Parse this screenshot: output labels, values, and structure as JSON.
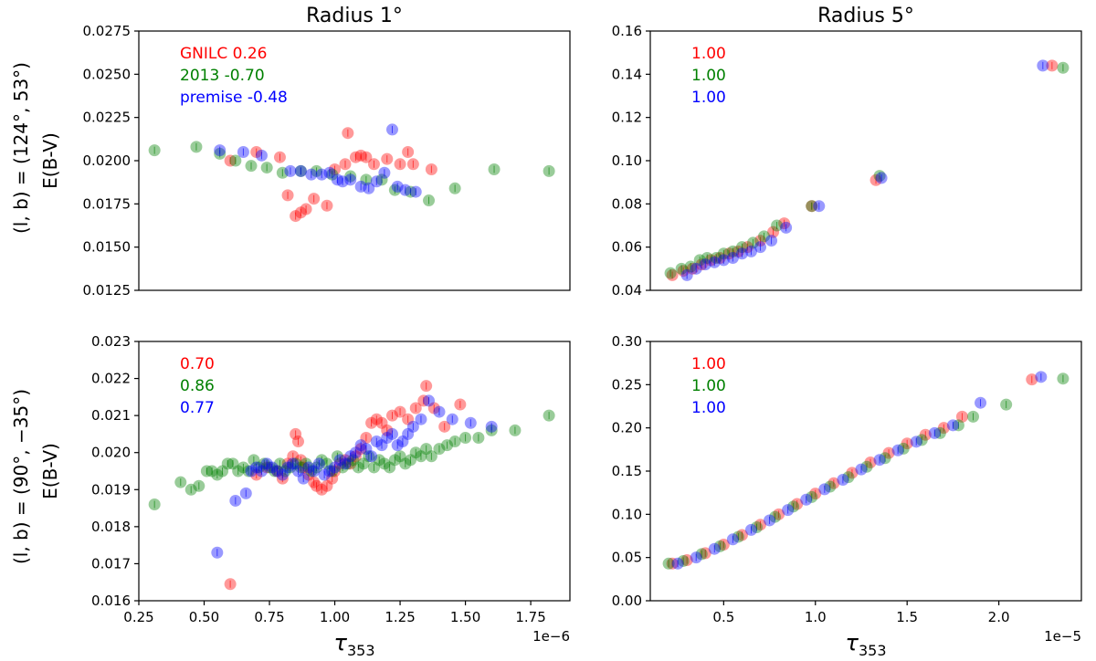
{
  "colors": {
    "GNILC": "#ff0000",
    "2013": "#008000",
    "premise": "#0000ff"
  },
  "row_labels": [
    "(l, b) = (124°, 53°)",
    "(l, b) = (90°, −35°)"
  ],
  "chart_data": [
    {
      "type": "scatter",
      "title": "Radius 1°",
      "ylabel": "E(B-V)",
      "xlabel": "",
      "xlim": [
        0.25,
        1.9
      ],
      "ylim": [
        0.0125,
        0.0275
      ],
      "xticks": [],
      "xtick_labels": [],
      "yticks": [
        0.0125,
        0.015,
        0.0175,
        0.02,
        0.0225,
        0.025,
        0.0275
      ],
      "ytick_labels": [
        "0.0125",
        "0.0150",
        "0.0175",
        "0.0200",
        "0.0225",
        "0.0250",
        "0.0275"
      ],
      "offset_text": "",
      "legend": [
        {
          "series": "GNILC",
          "text": "GNILC 0.26"
        },
        {
          "series": "2013",
          "text": "2013 -0.70"
        },
        {
          "series": "premise",
          "text": "premise -0.48"
        }
      ],
      "series": [
        {
          "name": "GNILC",
          "x": [
            0.6,
            0.7,
            0.79,
            0.82,
            0.85,
            0.87,
            0.89,
            0.92,
            0.97,
            1.0,
            1.04,
            1.05,
            1.08,
            1.1,
            1.12,
            1.15,
            1.2,
            1.25,
            1.28,
            1.3,
            1.37
          ],
          "y": [
            0.02,
            0.0205,
            0.0202,
            0.018,
            0.0168,
            0.017,
            0.0172,
            0.0178,
            0.0174,
            0.0195,
            0.0198,
            0.0216,
            0.0202,
            0.0203,
            0.0202,
            0.0198,
            0.0201,
            0.0198,
            0.0205,
            0.0198,
            0.0195
          ]
        },
        {
          "name": "2013",
          "x": [
            0.31,
            0.47,
            0.56,
            0.62,
            0.68,
            0.74,
            0.8,
            0.87,
            0.93,
            0.99,
            1.06,
            1.12,
            1.18,
            1.23,
            1.29,
            1.36,
            1.46,
            1.61,
            1.82
          ],
          "y": [
            0.0206,
            0.0208,
            0.0204,
            0.02,
            0.0197,
            0.0196,
            0.0193,
            0.0194,
            0.0194,
            0.0192,
            0.0191,
            0.0189,
            0.0189,
            0.0183,
            0.0182,
            0.0177,
            0.0184,
            0.0195,
            0.0194
          ]
        },
        {
          "name": "premise",
          "x": [
            0.56,
            0.65,
            0.72,
            0.83,
            0.87,
            0.91,
            0.95,
            0.98,
            1.01,
            1.03,
            1.06,
            1.1,
            1.13,
            1.16,
            1.19,
            1.22,
            1.24,
            1.27,
            1.31
          ],
          "y": [
            0.0206,
            0.0205,
            0.0203,
            0.0194,
            0.0194,
            0.0192,
            0.0192,
            0.0193,
            0.0189,
            0.0188,
            0.0189,
            0.0185,
            0.0184,
            0.0188,
            0.0193,
            0.0218,
            0.0185,
            0.0183,
            0.0182
          ]
        }
      ]
    },
    {
      "type": "scatter",
      "title": "Radius 5°",
      "ylabel": "",
      "xlabel": "",
      "xlim": [
        0.1,
        2.45
      ],
      "ylim": [
        0.04,
        0.16
      ],
      "xticks": [],
      "xtick_labels": [],
      "yticks": [
        0.04,
        0.06,
        0.08,
        0.1,
        0.12,
        0.14,
        0.16
      ],
      "ytick_labels": [
        "0.04",
        "0.06",
        "0.08",
        "0.10",
        "0.12",
        "0.14",
        "0.16"
      ],
      "offset_text": "",
      "legend": [
        {
          "series": "GNILC",
          "text": "1.00"
        },
        {
          "series": "2013",
          "text": "1.00"
        },
        {
          "series": "premise",
          "text": "1.00"
        }
      ],
      "series": [
        {
          "name": "GNILC",
          "x": [
            0.22,
            0.28,
            0.33,
            0.38,
            0.43,
            0.48,
            0.53,
            0.58,
            0.63,
            0.7,
            0.77,
            0.83,
            0.98,
            1.33,
            2.29
          ],
          "y": [
            0.047,
            0.049,
            0.05,
            0.052,
            0.054,
            0.055,
            0.057,
            0.058,
            0.06,
            0.063,
            0.067,
            0.071,
            0.079,
            0.091,
            0.144
          ]
        },
        {
          "name": "2013",
          "x": [
            0.21,
            0.27,
            0.32,
            0.37,
            0.41,
            0.46,
            0.5,
            0.55,
            0.6,
            0.66,
            0.72,
            0.79,
            0.98,
            1.35,
            2.35
          ],
          "y": [
            0.048,
            0.05,
            0.051,
            0.054,
            0.055,
            0.055,
            0.057,
            0.058,
            0.06,
            0.062,
            0.065,
            0.07,
            0.079,
            0.093,
            0.143
          ]
        },
        {
          "name": "premise",
          "x": [
            0.3,
            0.35,
            0.4,
            0.45,
            0.5,
            0.55,
            0.6,
            0.65,
            0.7,
            0.76,
            0.84,
            1.02,
            1.36,
            2.24
          ],
          "y": [
            0.047,
            0.05,
            0.052,
            0.053,
            0.054,
            0.055,
            0.057,
            0.058,
            0.06,
            0.063,
            0.069,
            0.079,
            0.092,
            0.144
          ]
        }
      ]
    },
    {
      "type": "scatter",
      "title": "",
      "ylabel": "E(B-V)",
      "xlabel": "τ353",
      "xlim": [
        0.25,
        1.9
      ],
      "ylim": [
        0.016,
        0.023
      ],
      "xticks": [
        0.25,
        0.5,
        0.75,
        1.0,
        1.25,
        1.5,
        1.75
      ],
      "xtick_labels": [
        "0.25",
        "0.50",
        "0.75",
        "1.00",
        "1.25",
        "1.50",
        "1.75"
      ],
      "yticks": [
        0.016,
        0.017,
        0.018,
        0.019,
        0.02,
        0.021,
        0.022,
        0.023
      ],
      "ytick_labels": [
        "0.016",
        "0.017",
        "0.018",
        "0.019",
        "0.020",
        "0.021",
        "0.022",
        "0.023"
      ],
      "offset_text": "1e−6",
      "legend": [
        {
          "series": "GNILC",
          "text": "0.70"
        },
        {
          "series": "2013",
          "text": "0.86"
        },
        {
          "series": "premise",
          "text": "0.77"
        }
      ],
      "series": [
        {
          "name": "GNILC",
          "x": [
            0.6,
            0.7,
            0.74,
            0.78,
            0.8,
            0.82,
            0.84,
            0.85,
            0.86,
            0.87,
            0.88,
            0.9,
            0.92,
            0.93,
            0.95,
            0.97,
            0.99,
            1.0,
            1.02,
            1.04,
            1.06,
            1.08,
            1.1,
            1.12,
            1.14,
            1.16,
            1.18,
            1.2,
            1.22,
            1.25,
            1.28,
            1.31,
            1.34,
            1.35,
            1.38,
            1.42,
            1.48
          ],
          "y": [
            0.01645,
            0.0194,
            0.0196,
            0.0195,
            0.0193,
            0.0197,
            0.0199,
            0.0205,
            0.0203,
            0.0198,
            0.0196,
            0.0194,
            0.0192,
            0.0191,
            0.019,
            0.0191,
            0.0193,
            0.0195,
            0.0197,
            0.0198,
            0.0197,
            0.0199,
            0.0201,
            0.0204,
            0.0208,
            0.0209,
            0.0208,
            0.0206,
            0.021,
            0.0211,
            0.0209,
            0.0212,
            0.0214,
            0.0218,
            0.0212,
            0.0207,
            0.0213
          ]
        },
        {
          "name": "2013",
          "x": [
            0.31,
            0.41,
            0.45,
            0.48,
            0.51,
            0.53,
            0.55,
            0.57,
            0.59,
            0.61,
            0.63,
            0.65,
            0.67,
            0.69,
            0.71,
            0.73,
            0.75,
            0.77,
            0.79,
            0.81,
            0.83,
            0.85,
            0.87,
            0.89,
            0.91,
            0.93,
            0.95,
            0.97,
            0.99,
            1.01,
            1.03,
            1.05,
            1.07,
            1.09,
            1.11,
            1.13,
            1.15,
            1.17,
            1.19,
            1.21,
            1.23,
            1.25,
            1.27,
            1.29,
            1.31,
            1.33,
            1.35,
            1.37,
            1.4,
            1.43,
            1.46,
            1.5,
            1.55,
            1.6,
            1.69,
            1.82
          ],
          "y": [
            0.0186,
            0.0192,
            0.019,
            0.0191,
            0.0195,
            0.0195,
            0.0194,
            0.0195,
            0.0197,
            0.0197,
            0.0195,
            0.0196,
            0.0195,
            0.0198,
            0.0196,
            0.0197,
            0.0196,
            0.0195,
            0.0197,
            0.0195,
            0.0196,
            0.0197,
            0.0196,
            0.0197,
            0.0195,
            0.0196,
            0.0198,
            0.0197,
            0.0195,
            0.0199,
            0.0196,
            0.0197,
            0.0198,
            0.0196,
            0.0197,
            0.0199,
            0.0196,
            0.0198,
            0.0197,
            0.0196,
            0.0198,
            0.0199,
            0.0197,
            0.0198,
            0.02,
            0.0199,
            0.0201,
            0.0199,
            0.0201,
            0.0202,
            0.0203,
            0.0204,
            0.0204,
            0.0206,
            0.0206,
            0.021
          ]
        },
        {
          "name": "premise",
          "x": [
            0.55,
            0.62,
            0.66,
            0.68,
            0.7,
            0.72,
            0.74,
            0.76,
            0.78,
            0.8,
            0.82,
            0.84,
            0.86,
            0.88,
            0.9,
            0.92,
            0.94,
            0.96,
            0.98,
            1.0,
            1.02,
            1.04,
            1.06,
            1.08,
            1.1,
            1.12,
            1.14,
            1.16,
            1.18,
            1.2,
            1.22,
            1.24,
            1.26,
            1.28,
            1.3,
            1.33,
            1.36,
            1.4,
            1.45,
            1.52,
            1.6
          ],
          "y": [
            0.0173,
            0.0187,
            0.0189,
            0.0195,
            0.0196,
            0.0195,
            0.0197,
            0.0196,
            0.0195,
            0.0194,
            0.0196,
            0.0197,
            0.0195,
            0.0193,
            0.0196,
            0.0195,
            0.0197,
            0.0194,
            0.0195,
            0.0196,
            0.0198,
            0.0197,
            0.0199,
            0.02,
            0.0202,
            0.0201,
            0.0199,
            0.0203,
            0.0202,
            0.0204,
            0.0205,
            0.0202,
            0.0203,
            0.0205,
            0.0207,
            0.0209,
            0.0214,
            0.0211,
            0.0209,
            0.0208,
            0.0207
          ]
        }
      ]
    },
    {
      "type": "scatter",
      "title": "",
      "ylabel": "",
      "xlabel": "τ353",
      "xlim": [
        0.1,
        2.45
      ],
      "ylim": [
        0.0,
        0.3
      ],
      "xticks": [
        0.5,
        1.0,
        1.5,
        2.0
      ],
      "xtick_labels": [
        "0.5",
        "1.0",
        "1.5",
        "2.0"
      ],
      "yticks": [
        0.0,
        0.05,
        0.1,
        0.15,
        0.2,
        0.25,
        0.3
      ],
      "ytick_labels": [
        "0.00",
        "0.05",
        "0.10",
        "0.15",
        "0.20",
        "0.25",
        "0.30"
      ],
      "offset_text": "1e−5",
      "legend": [
        {
          "series": "GNILC",
          "text": "1.00"
        },
        {
          "series": "2013",
          "text": "1.00"
        },
        {
          "series": "premise",
          "text": "1.00"
        }
      ],
      "series": [
        {
          "name": "GNILC",
          "x": [
            0.22,
            0.3,
            0.4,
            0.5,
            0.6,
            0.7,
            0.8,
            0.9,
            1.0,
            1.1,
            1.2,
            1.3,
            1.4,
            1.5,
            1.6,
            1.7,
            1.8,
            2.18
          ],
          "y": [
            0.043,
            0.047,
            0.055,
            0.065,
            0.076,
            0.088,
            0.1,
            0.112,
            0.124,
            0.136,
            0.148,
            0.16,
            0.171,
            0.182,
            0.192,
            0.2,
            0.213,
            0.256
          ]
        },
        {
          "name": "2013",
          "x": [
            0.2,
            0.28,
            0.38,
            0.48,
            0.58,
            0.68,
            0.78,
            0.88,
            0.98,
            1.08,
            1.18,
            1.28,
            1.38,
            1.48,
            1.58,
            1.68,
            1.78,
            1.86,
            2.04,
            2.35
          ],
          "y": [
            0.043,
            0.046,
            0.054,
            0.063,
            0.074,
            0.085,
            0.097,
            0.109,
            0.12,
            0.132,
            0.143,
            0.155,
            0.165,
            0.176,
            0.186,
            0.194,
            0.203,
            0.213,
            0.227,
            0.257
          ]
        },
        {
          "name": "premise",
          "x": [
            0.25,
            0.35,
            0.45,
            0.55,
            0.65,
            0.75,
            0.85,
            0.95,
            1.05,
            1.15,
            1.25,
            1.35,
            1.45,
            1.55,
            1.65,
            1.75,
            1.9,
            2.23
          ],
          "y": [
            0.043,
            0.05,
            0.06,
            0.071,
            0.082,
            0.093,
            0.105,
            0.117,
            0.129,
            0.14,
            0.152,
            0.163,
            0.174,
            0.184,
            0.194,
            0.203,
            0.229,
            0.259
          ]
        }
      ]
    }
  ]
}
